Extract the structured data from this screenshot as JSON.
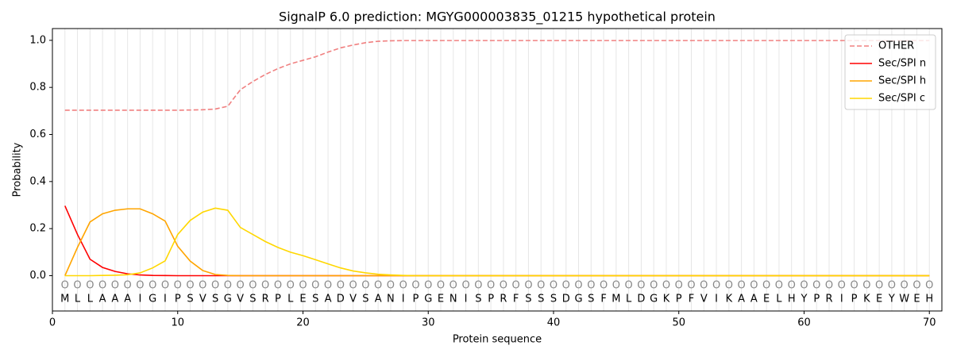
{
  "chart_data": {
    "type": "line",
    "title": "SignalP 6.0 prediction: MGYG000003835_01215 hypothetical protein",
    "xlabel": "Protein sequence",
    "ylabel": "Probability",
    "x": [
      1,
      2,
      3,
      4,
      5,
      6,
      7,
      8,
      9,
      10,
      11,
      12,
      13,
      14,
      15,
      16,
      17,
      18,
      19,
      20,
      21,
      22,
      23,
      24,
      25,
      26,
      27,
      28,
      29,
      30,
      31,
      32,
      33,
      34,
      35,
      36,
      37,
      38,
      39,
      40,
      41,
      42,
      43,
      44,
      45,
      46,
      47,
      48,
      49,
      50,
      51,
      52,
      53,
      54,
      55,
      56,
      57,
      58,
      59,
      60,
      61,
      62,
      63,
      64,
      65,
      66,
      67,
      68,
      69,
      70
    ],
    "residues": [
      "M",
      "L",
      "L",
      "A",
      "A",
      "A",
      "I",
      "G",
      "I",
      "P",
      "S",
      "V",
      "S",
      "G",
      "V",
      "S",
      "R",
      "P",
      "L",
      "E",
      "S",
      "A",
      "D",
      "V",
      "S",
      "A",
      "N",
      "I",
      "P",
      "G",
      "E",
      "N",
      "I",
      "S",
      "P",
      "R",
      "F",
      "S",
      "S",
      "S",
      "D",
      "G",
      "S",
      "F",
      "M",
      "L",
      "D",
      "G",
      "K",
      "P",
      "F",
      "V",
      "I",
      "K",
      "A",
      "A",
      "E",
      "L",
      "H",
      "Y",
      "P",
      "R",
      "I",
      "P",
      "K",
      "E",
      "Y",
      "W",
      "E",
      "H"
    ],
    "annotations": [
      "O",
      "O",
      "O",
      "O",
      "O",
      "O",
      "O",
      "O",
      "O",
      "O",
      "O",
      "O",
      "O",
      "O",
      "O",
      "O",
      "O",
      "O",
      "O",
      "O",
      "O",
      "O",
      "O",
      "O",
      "O",
      "O",
      "O",
      "O",
      "O",
      "O",
      "O",
      "O",
      "O",
      "O",
      "O",
      "O",
      "O",
      "O",
      "O",
      "O",
      "O",
      "O",
      "O",
      "O",
      "O",
      "O",
      "O",
      "O",
      "O",
      "O",
      "O",
      "O",
      "O",
      "O",
      "O",
      "O",
      "O",
      "O",
      "O",
      "O",
      "O",
      "O",
      "O",
      "O",
      "O",
      "O",
      "O",
      "O",
      "O",
      "O"
    ],
    "series": [
      {
        "name": "OTHER",
        "color": "#f08080",
        "linestyle": "dashed",
        "values": [
          0.703,
          0.703,
          0.703,
          0.703,
          0.703,
          0.703,
          0.703,
          0.703,
          0.703,
          0.703,
          0.704,
          0.705,
          0.708,
          0.72,
          0.79,
          0.825,
          0.855,
          0.88,
          0.9,
          0.915,
          0.93,
          0.95,
          0.968,
          0.98,
          0.99,
          0.996,
          0.998,
          0.999,
          0.999,
          0.999,
          0.999,
          0.999,
          0.999,
          0.999,
          0.999,
          0.999,
          0.999,
          0.999,
          0.999,
          0.999,
          0.999,
          0.999,
          0.999,
          0.999,
          0.999,
          0.999,
          0.999,
          0.999,
          0.999,
          0.999,
          0.999,
          0.999,
          0.999,
          0.999,
          0.999,
          0.999,
          0.999,
          0.999,
          0.999,
          0.999,
          0.999,
          0.999,
          0.999,
          0.999,
          0.999,
          0.999,
          0.999,
          0.999,
          0.999,
          0.999
        ]
      },
      {
        "name": "Sec/SPI n",
        "color": "#ff0000",
        "linestyle": "solid",
        "values": [
          0.297,
          0.175,
          0.07,
          0.035,
          0.018,
          0.008,
          0.003,
          0.001,
          0.0005,
          0,
          0,
          0,
          0,
          0,
          0,
          0,
          0,
          0,
          0,
          0,
          0,
          0,
          0,
          0,
          0,
          0,
          0,
          0,
          0,
          0,
          0,
          0,
          0,
          0,
          0,
          0,
          0,
          0,
          0,
          0,
          0,
          0,
          0,
          0,
          0,
          0,
          0,
          0,
          0,
          0,
          0,
          0,
          0,
          0,
          0,
          0,
          0,
          0,
          0,
          0,
          0,
          0,
          0,
          0,
          0,
          0,
          0,
          0,
          0,
          0
        ]
      },
      {
        "name": "Sec/SPI h",
        "color": "#ffa500",
        "linestyle": "solid",
        "values": [
          0,
          0.12,
          0.228,
          0.263,
          0.278,
          0.284,
          0.284,
          0.263,
          0.232,
          0.125,
          0.062,
          0.022,
          0.005,
          0.001,
          0,
          0,
          0,
          0,
          0,
          0,
          0,
          0,
          0,
          0,
          0,
          0,
          0,
          0,
          0,
          0,
          0,
          0,
          0,
          0,
          0,
          0,
          0,
          0,
          0,
          0,
          0,
          0,
          0,
          0,
          0,
          0,
          0,
          0,
          0,
          0,
          0,
          0,
          0,
          0,
          0,
          0,
          0,
          0,
          0,
          0,
          0,
          0,
          0,
          0,
          0,
          0,
          0,
          0,
          0,
          0
        ]
      },
      {
        "name": "Sec/SPI c",
        "color": "#ffd700",
        "linestyle": "solid",
        "values": [
          0,
          0,
          0,
          0.001,
          0.002,
          0.004,
          0.012,
          0.033,
          0.063,
          0.175,
          0.235,
          0.27,
          0.287,
          0.278,
          0.205,
          0.175,
          0.145,
          0.12,
          0.1,
          0.085,
          0.068,
          0.05,
          0.033,
          0.02,
          0.012,
          0.006,
          0.003,
          0.001,
          0,
          0,
          0,
          0,
          0,
          0,
          0,
          0,
          0,
          0,
          0,
          0,
          0,
          0,
          0,
          0,
          0,
          0,
          0,
          0,
          0,
          0,
          0,
          0,
          0,
          0,
          0,
          0,
          0,
          0,
          0,
          0,
          0,
          0,
          0,
          0,
          0,
          0,
          0,
          0,
          0,
          0
        ]
      }
    ],
    "xlim": [
      0,
      71
    ],
    "ylim": [
      -0.15,
      1.05
    ],
    "xticks": [
      0,
      10,
      20,
      30,
      40,
      50,
      60,
      70
    ],
    "yticks": [
      {
        "value": 0,
        "label": "0.0"
      },
      {
        "value": 0.2,
        "label": "0.2"
      },
      {
        "value": 0.4,
        "label": "0.4"
      },
      {
        "value": 0.6,
        "label": "0.6"
      },
      {
        "value": 0.8,
        "label": "0.8"
      },
      {
        "value": 1,
        "label": "1.0"
      }
    ],
    "grid": true,
    "legend": "upper right"
  }
}
